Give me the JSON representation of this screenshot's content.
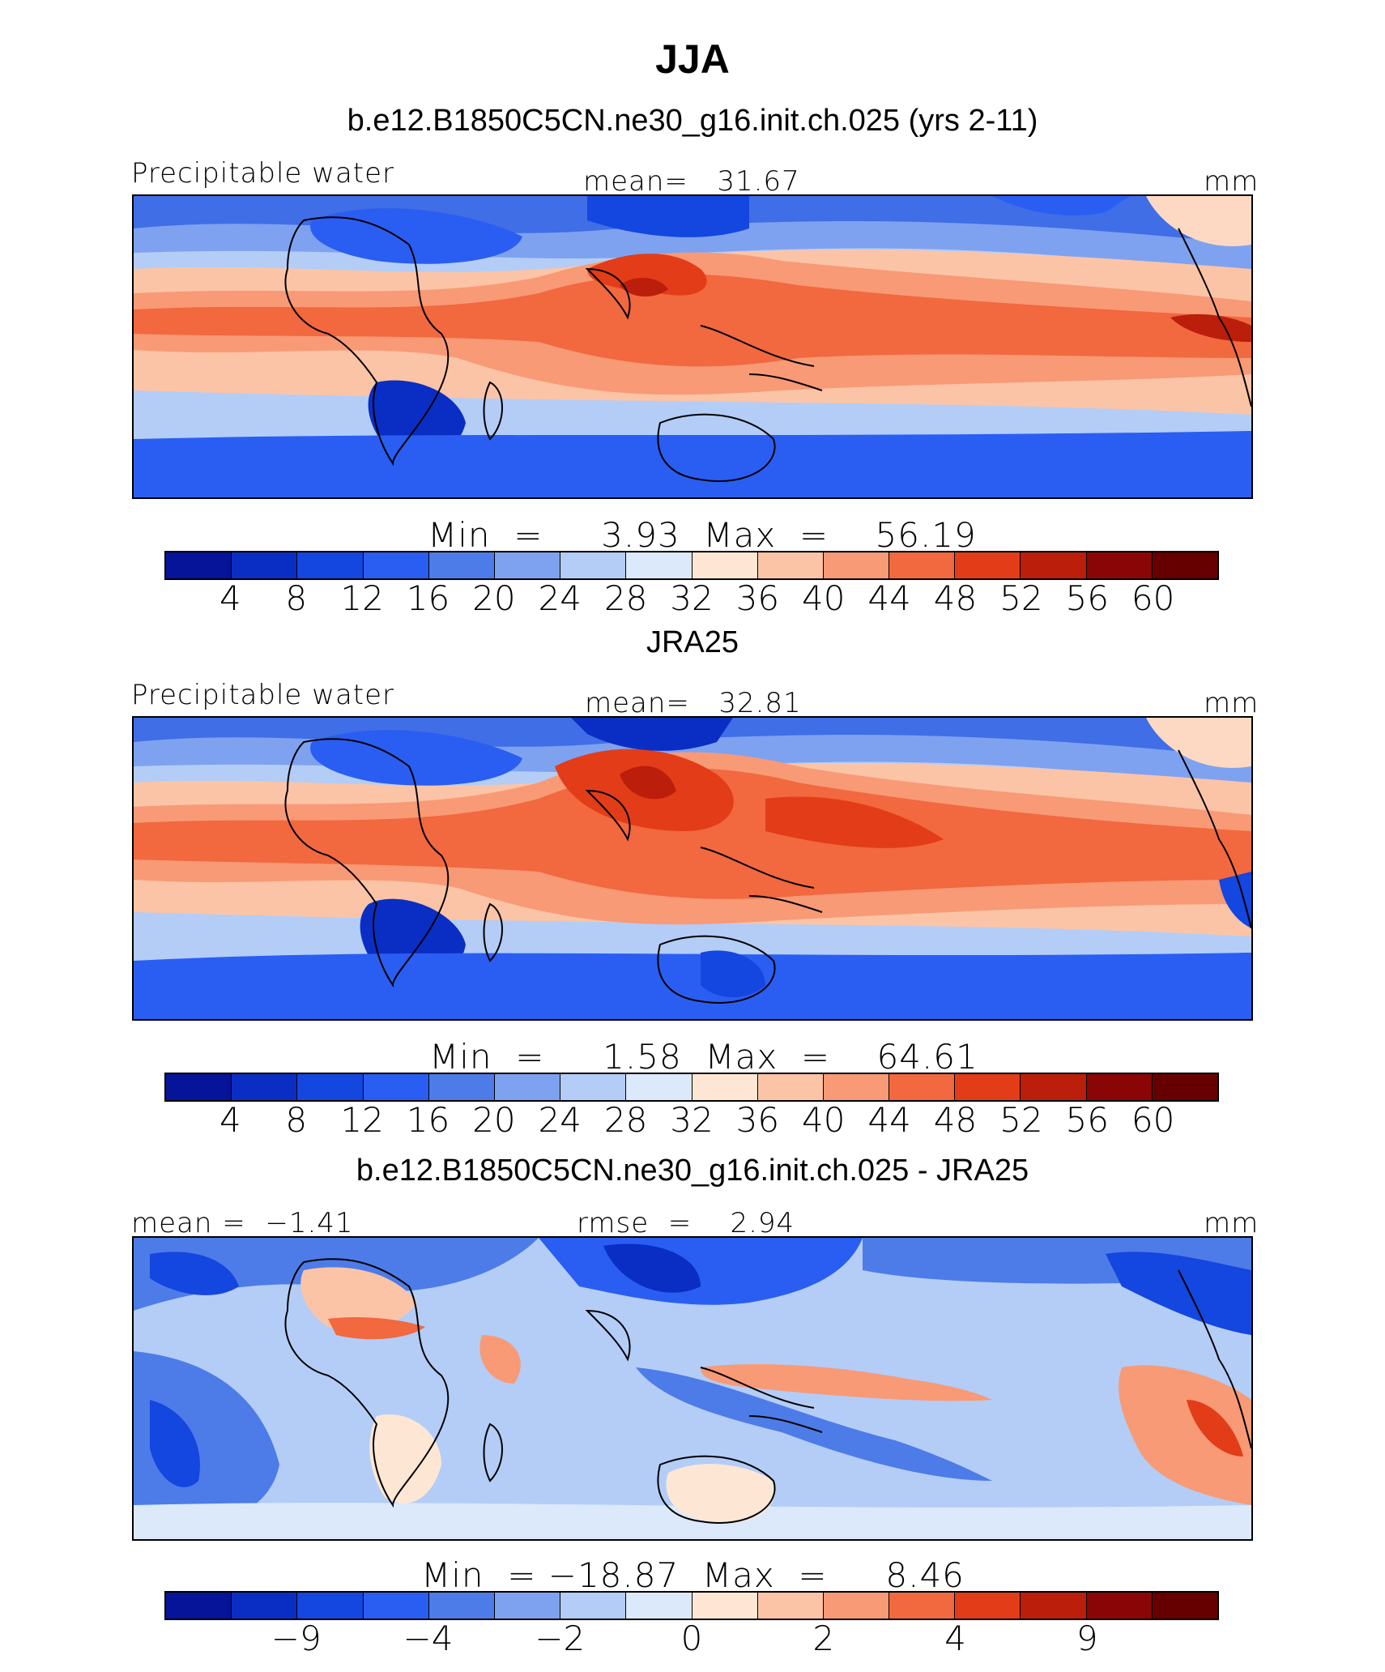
{
  "title": "JJA",
  "panels": [
    {
      "subtitle": "b.e12.B1850C5CN.ne30_g16.init.ch.025 (yrs 2-11)",
      "left_label": "Precipitable water",
      "center_label": "mean=   31.67",
      "units": "mm",
      "minmax": "Min  =     3.93  Max  =    56.19",
      "tick_labels": [
        "4",
        "8",
        "12",
        "16",
        "20",
        "24",
        "28",
        "32",
        "36",
        "40",
        "44",
        "48",
        "52",
        "56",
        "60"
      ]
    },
    {
      "subtitle": "JRA25",
      "left_label": "Precipitable water",
      "center_label": "mean=   32.81",
      "units": "mm",
      "minmax": "Min  =     1.58  Max  =    64.61",
      "tick_labels": [
        "4",
        "8",
        "12",
        "16",
        "20",
        "24",
        "28",
        "32",
        "36",
        "40",
        "44",
        "48",
        "52",
        "56",
        "60"
      ]
    },
    {
      "subtitle": "b.e12.B1850C5CN.ne30_g16.init.ch.025 - JRA25",
      "left_label": "mean =  −1.41",
      "center_label": "rmse  =    2.94",
      "units": "mm",
      "minmax": "Min  = −18.87  Max  =     8.46",
      "tick_labels": [
        "−9",
        "−4",
        "−2",
        "0",
        "2",
        "4",
        "9"
      ]
    }
  ],
  "colorbar_colors": [
    "#06149a",
    "#0a2ec4",
    "#1446e0",
    "#2a5ef2",
    "#4d7ce8",
    "#7ea2f0",
    "#b3cdf7",
    "#dbe9fb",
    "#fde7d4",
    "#fcc4a6",
    "#f89a76",
    "#f2683f",
    "#e23d18",
    "#bb1e0a",
    "#8a0606",
    "#660000"
  ],
  "legend_colors_used": 16
}
